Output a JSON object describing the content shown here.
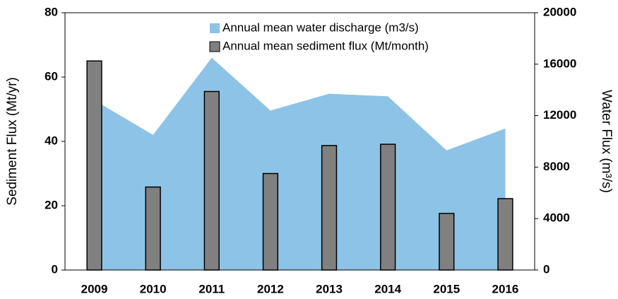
{
  "chart_data": {
    "type": "bar-area",
    "categories": [
      "2009",
      "2010",
      "2011",
      "2012",
      "2013",
      "2014",
      "2015",
      "2016"
    ],
    "series": [
      {
        "name": "Annual mean water discharge (m3/s)",
        "type": "area",
        "axis": "y2",
        "color": "#8dc3e6",
        "values": [
          13200,
          10500,
          16500,
          12400,
          13700,
          13500,
          9300,
          11000
        ]
      },
      {
        "name": "Annual mean sediment flux (Mt/month)",
        "type": "bar",
        "axis": "y",
        "color": "#808080",
        "values": [
          65,
          25.8,
          55.5,
          30,
          38.7,
          39.1,
          17.6,
          22.2
        ]
      }
    ],
    "ylabel": "Sediment Flux (Mt/yr)",
    "y2label": "Water Flux (m³/s)",
    "ylim": [
      0,
      80
    ],
    "yticks": [
      0,
      20,
      40,
      60,
      80
    ],
    "y2lim": [
      0,
      20000
    ],
    "y2ticks": [
      0,
      4000,
      8000,
      12000,
      16000,
      20000
    ],
    "legend": "top"
  }
}
